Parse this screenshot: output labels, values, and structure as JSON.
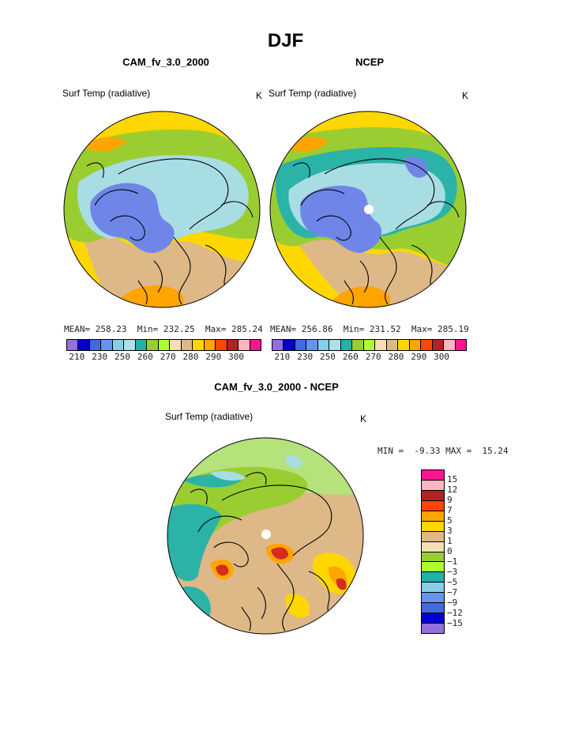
{
  "page_title": "DJF",
  "units": "K",
  "chart_data": [
    {
      "type": "heatmap",
      "projection": "north polar stereographic",
      "title": "CAM_fv_3.0_2000",
      "variable": "Surf Temp (radiative)",
      "units": "K",
      "mean": "258.23",
      "min": "232.25",
      "max": "285.24",
      "colorbar_tick_labels": [
        "210",
        "230",
        "250",
        "260",
        "270",
        "280",
        "290",
        "300"
      ],
      "stats": {
        "mean_label": "MEAN=",
        "min_label": "Min=",
        "max_label": "Max="
      }
    },
    {
      "type": "heatmap",
      "projection": "north polar stereographic",
      "title": "NCEP",
      "variable": "Surf Temp (radiative)",
      "units": "K",
      "mean": "256.86",
      "min": "231.52",
      "max": "285.19",
      "colorbar_tick_labels": [
        "210",
        "230",
        "250",
        "260",
        "270",
        "280",
        "290",
        "300"
      ],
      "stats": {
        "mean_label": "MEAN=",
        "min_label": "Min=",
        "max_label": "Max="
      }
    },
    {
      "type": "heatmap",
      "projection": "north polar stereographic",
      "title": "CAM_fv_3.0_2000 - NCEP",
      "variable": "Surf Temp (radiative)",
      "units": "K",
      "min": "-9.33",
      "max": "15.24",
      "min_label": "MIN =",
      "max_label": "MAX =",
      "colorbar_tick_labels": [
        "15",
        "12",
        "9",
        "7",
        "5",
        "3",
        "1",
        "0",
        "−1",
        "−3",
        "−5",
        "−7",
        "−9",
        "−12",
        "−15"
      ]
    }
  ],
  "colors": {
    "abs_scale": [
      "#9370db",
      "#0000cd",
      "#4169e1",
      "#6495ed",
      "#87ceeb",
      "#b0e0e6",
      "#20b2aa",
      "#9acd32",
      "#adff2f",
      "#f5deb3",
      "#deb887",
      "#ffd700",
      "#ffa500",
      "#ff4500",
      "#b22222",
      "#ffb6c1",
      "#ff1493"
    ],
    "diff_scale": [
      "#ff1493",
      "#ffb6c1",
      "#b22222",
      "#ff4500",
      "#ffa500",
      "#ffd700",
      "#deb887",
      "#f5deb3",
      "#9acd32",
      "#adff2f",
      "#20b2aa",
      "#87ceeb",
      "#6495ed",
      "#4169e1",
      "#0000cd",
      "#9370db"
    ],
    "cold_core": "#6f86e8",
    "cold_ring": "#a8dde3",
    "mid_green": "#9acd32",
    "warm_tan": "#deb887",
    "warm_gold": "#ffd700",
    "warm_orange": "#ffa500",
    "light_green": "#b5e27a",
    "teal": "#2bb3a8",
    "red": "#d62c1f",
    "coast": "#000000"
  }
}
